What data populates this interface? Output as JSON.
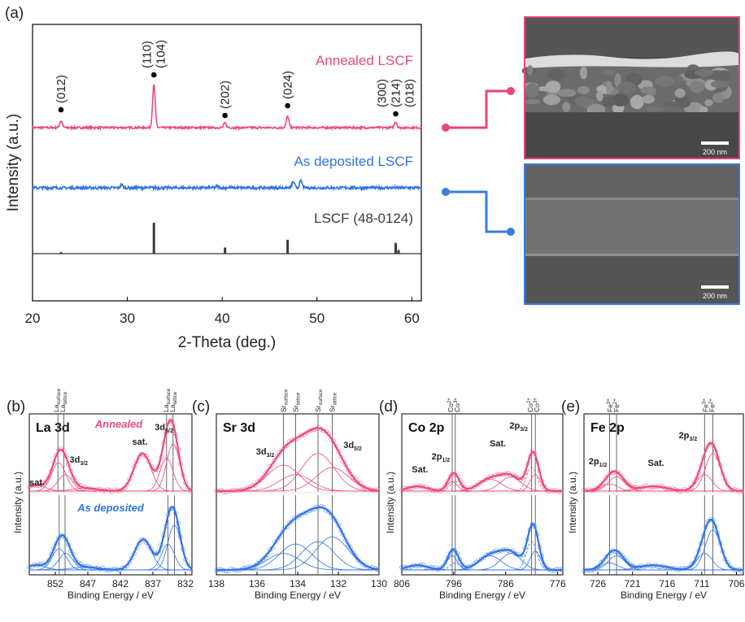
{
  "panel_labels": [
    "(a)",
    "(b)",
    "(c)",
    "(d)",
    "(e)"
  ],
  "colors": {
    "annealed": "#f0487a",
    "deposited": "#2f73e6",
    "reference": "#3a3a3a",
    "sem_annealed_frame": "#e8457a",
    "sem_deposited_frame": "#3a7be0"
  },
  "xrd": {
    "xlabel": "2-Theta (deg.)",
    "ylabel": "Intensity (a.u.)",
    "ticks": [
      20,
      30,
      40,
      50,
      60
    ],
    "curve_labels": {
      "annealed": "Annealed LSCF",
      "deposited": "As deposited LSCF",
      "reference": "LSCF (48-0124)"
    },
    "peak_labels": [
      {
        "x": 23.0,
        "lines": [
          "(012)"
        ]
      },
      {
        "x": 32.8,
        "lines": [
          "(110)",
          "(104)"
        ]
      },
      {
        "x": 40.3,
        "lines": [
          "(202)"
        ]
      },
      {
        "x": 46.9,
        "lines": [
          "(024)"
        ]
      },
      {
        "x": 58.3,
        "lines": [
          "(300)",
          "(214)",
          "(018)"
        ]
      }
    ]
  },
  "sem": {
    "scale_top": "200 nm",
    "scale_bottom": "200 nm"
  },
  "xps_common": {
    "xlabel": "Binding Energy / eV",
    "ylabel": "Intensity (a.u.)",
    "annealed_label": "Annealed",
    "deposited_label": "As deposited"
  },
  "chart_data": [
    {
      "type": "line",
      "title": "",
      "xlabel": "2-Theta (deg.)",
      "ylabel": "Intensity (a.u.)",
      "xlim": [
        20,
        61
      ],
      "series": [
        {
          "name": "Annealed LSCF",
          "peaks": [
            [
              23.0,
              0.12
            ],
            [
              32.8,
              0.75
            ],
            [
              40.3,
              0.08
            ],
            [
              46.9,
              0.2
            ],
            [
              58.3,
              0.1
            ]
          ]
        },
        {
          "name": "As deposited LSCF",
          "peaks": [
            [
              29.4,
              0.05
            ],
            [
              47.5,
              0.1
            ],
            [
              48.3,
              0.12
            ],
            [
              39.5,
              0.03
            ]
          ]
        },
        {
          "name": "LSCF (48-0124)",
          "sticks": [
            [
              23.0,
              0.05
            ],
            [
              32.8,
              1.0
            ],
            [
              40.3,
              0.2
            ],
            [
              46.9,
              0.45
            ],
            [
              58.3,
              0.35
            ],
            [
              58.6,
              0.12
            ]
          ]
        }
      ]
    },
    {
      "type": "line",
      "title": "La 3d",
      "xlabel": "Binding Energy / eV",
      "ylabel": "Intensity (a.u.)",
      "xlim": [
        856,
        831
      ],
      "ticks": [
        852,
        847,
        842,
        837,
        832
      ],
      "vlines": {
        "annealed": [
          851.6,
          850.7,
          834.9,
          833.9
        ],
        "deposited": [
          851.4,
          850.5,
          834.7,
          833.7
        ]
      },
      "top_labels": [
        {
          "x": 851.4,
          "lines": [
            "La_surface",
            "La_lattice"
          ]
        },
        {
          "x": 834.5,
          "lines": [
            "La_surface",
            "La_lattice"
          ]
        }
      ],
      "annotations": [
        {
          "text": "sat.",
          "x": 854.8,
          "pos": "top"
        },
        {
          "text": "3d3/2",
          "x": 848.4,
          "pos": "top"
        },
        {
          "text": "sat.",
          "x": 839.0,
          "pos": "top"
        },
        {
          "text": "3d5/2",
          "x": 835.3,
          "pos": "top"
        }
      ],
      "series": [
        {
          "name": "Annealed",
          "peaks": [
            [
              855.0,
              0.12,
              1.5
            ],
            [
              851.5,
              0.6,
              1.1
            ],
            [
              850.5,
              0.35,
              1.1
            ],
            [
              847.5,
              0.06,
              2.0
            ],
            [
              838.6,
              0.8,
              1.3
            ],
            [
              834.9,
              0.7,
              1.0
            ],
            [
              833.9,
              1.0,
              1.0
            ]
          ]
        },
        {
          "name": "As deposited",
          "peaks": [
            [
              855.0,
              0.1,
              1.5
            ],
            [
              851.4,
              0.45,
              1.1
            ],
            [
              850.4,
              0.35,
              1.1
            ],
            [
              847.5,
              0.06,
              2.0
            ],
            [
              838.5,
              0.65,
              1.3
            ],
            [
              834.7,
              0.55,
              1.0
            ],
            [
              833.7,
              0.95,
              1.0
            ]
          ]
        }
      ]
    },
    {
      "type": "line",
      "title": "Sr 3d",
      "xlabel": "Binding Energy / eV",
      "ylabel": "",
      "xlim": [
        138,
        130
      ],
      "ticks": [
        138,
        136,
        134,
        132,
        130
      ],
      "vlines": {
        "annealed": [
          134.7,
          134.1,
          133.0,
          132.3
        ],
        "deposited": [
          134.7,
          134.1,
          133.0,
          132.3
        ]
      },
      "top_labels": [
        {
          "x": 134.7,
          "lines": [
            "Sr_surface"
          ]
        },
        {
          "x": 134.1,
          "lines": [
            "Sr_lattice"
          ]
        },
        {
          "x": 133.0,
          "lines": [
            "Sr_surface"
          ]
        },
        {
          "x": 132.3,
          "lines": [
            "Sr_lattice"
          ]
        }
      ],
      "annotations": [
        {
          "text": "3d3/2",
          "x": 135.6,
          "pos": "top"
        },
        {
          "text": "3d5/2",
          "x": 131.3,
          "pos": "top"
        }
      ],
      "series": [
        {
          "name": "Annealed",
          "peaks": [
            [
              134.7,
              0.55,
              0.8
            ],
            [
              134.1,
              0.35,
              0.8
            ],
            [
              133.0,
              0.8,
              0.8
            ],
            [
              132.3,
              0.5,
              0.8
            ]
          ]
        },
        {
          "name": "As deposited",
          "peaks": [
            [
              134.7,
              0.35,
              0.8
            ],
            [
              134.1,
              0.55,
              0.8
            ],
            [
              133.0,
              0.6,
              0.8
            ],
            [
              132.3,
              0.7,
              0.8
            ]
          ]
        }
      ]
    },
    {
      "type": "line",
      "title": "Co 2p",
      "xlabel": "Binding Energy / eV",
      "ylabel": "Intensity (a.u.)",
      "xlim": [
        806,
        775
      ],
      "ticks": [
        806,
        796,
        786,
        776
      ],
      "vlines": {
        "annealed": [
          796.3,
          795.7,
          781.0,
          780.3
        ],
        "deposited": [
          796.3,
          795.7,
          781.0,
          780.3
        ]
      },
      "top_labels": [
        {
          "x": 796.0,
          "lines": [
            "Co2+",
            "Co3+"
          ]
        },
        {
          "x": 780.6,
          "lines": [
            "Co2+",
            "Co3+"
          ]
        }
      ],
      "annotations": [
        {
          "text": "Sat.",
          "x": 802.5,
          "pos": "top"
        },
        {
          "text": "2p1/2",
          "x": 798.5,
          "pos": "top"
        },
        {
          "text": "Sat.",
          "x": 787.5,
          "pos": "top"
        },
        {
          "text": "2p3/2",
          "x": 783.5,
          "pos": "top"
        }
      ],
      "series": [
        {
          "name": "Annealed",
          "peaks": [
            [
              803.0,
              0.1,
              2.0
            ],
            [
              796.3,
              0.2,
              1.0
            ],
            [
              795.7,
              0.2,
              1.0
            ],
            [
              789.0,
              0.25,
              2.2
            ],
            [
              785.0,
              0.3,
              2.0
            ],
            [
              781.0,
              0.5,
              1.0
            ],
            [
              780.3,
              0.35,
              1.0
            ]
          ]
        },
        {
          "name": "As deposited",
          "peaks": [
            [
              803.0,
              0.1,
              2.0
            ],
            [
              796.3,
              0.3,
              1.0
            ],
            [
              795.7,
              0.15,
              1.0
            ],
            [
              789.0,
              0.3,
              2.2
            ],
            [
              785.0,
              0.35,
              2.0
            ],
            [
              781.0,
              0.6,
              1.0
            ],
            [
              780.3,
              0.4,
              1.0
            ]
          ]
        }
      ]
    },
    {
      "type": "line",
      "title": "Fe 2p",
      "xlabel": "Binding Energy / eV",
      "ylabel": "Intensity (a.u.)",
      "xlim": [
        728,
        705
      ],
      "ticks": [
        726,
        721,
        716,
        711,
        706
      ],
      "vlines": {
        "annealed": [
          724.3,
          723.3,
          710.6,
          709.4
        ],
        "deposited": [
          724.3,
          723.3,
          710.6,
          709.4
        ]
      },
      "top_labels": [
        {
          "x": 723.8,
          "lines": [
            "Fe3+",
            "Fe2+"
          ]
        },
        {
          "x": 710.0,
          "lines": [
            "Fe3+",
            "Fe2+"
          ]
        }
      ],
      "annotations": [
        {
          "text": "2p1/2",
          "x": 726.0,
          "pos": "top"
        },
        {
          "text": "Sat.",
          "x": 717.6,
          "pos": "top"
        },
        {
          "text": "2p3/2",
          "x": 713.0,
          "pos": "top"
        }
      ],
      "series": [
        {
          "name": "Annealed",
          "peaks": [
            [
              724.3,
              0.15,
              1.2
            ],
            [
              723.3,
              0.3,
              1.2
            ],
            [
              718.0,
              0.1,
              2.0
            ],
            [
              710.6,
              0.35,
              1.1
            ],
            [
              709.4,
              0.8,
              1.1
            ]
          ]
        },
        {
          "name": "As deposited",
          "peaks": [
            [
              724.3,
              0.15,
              1.2
            ],
            [
              723.3,
              0.3,
              1.2
            ],
            [
              718.0,
              0.1,
              2.0
            ],
            [
              710.6,
              0.35,
              1.1
            ],
            [
              709.4,
              0.85,
              1.1
            ]
          ]
        }
      ]
    }
  ]
}
